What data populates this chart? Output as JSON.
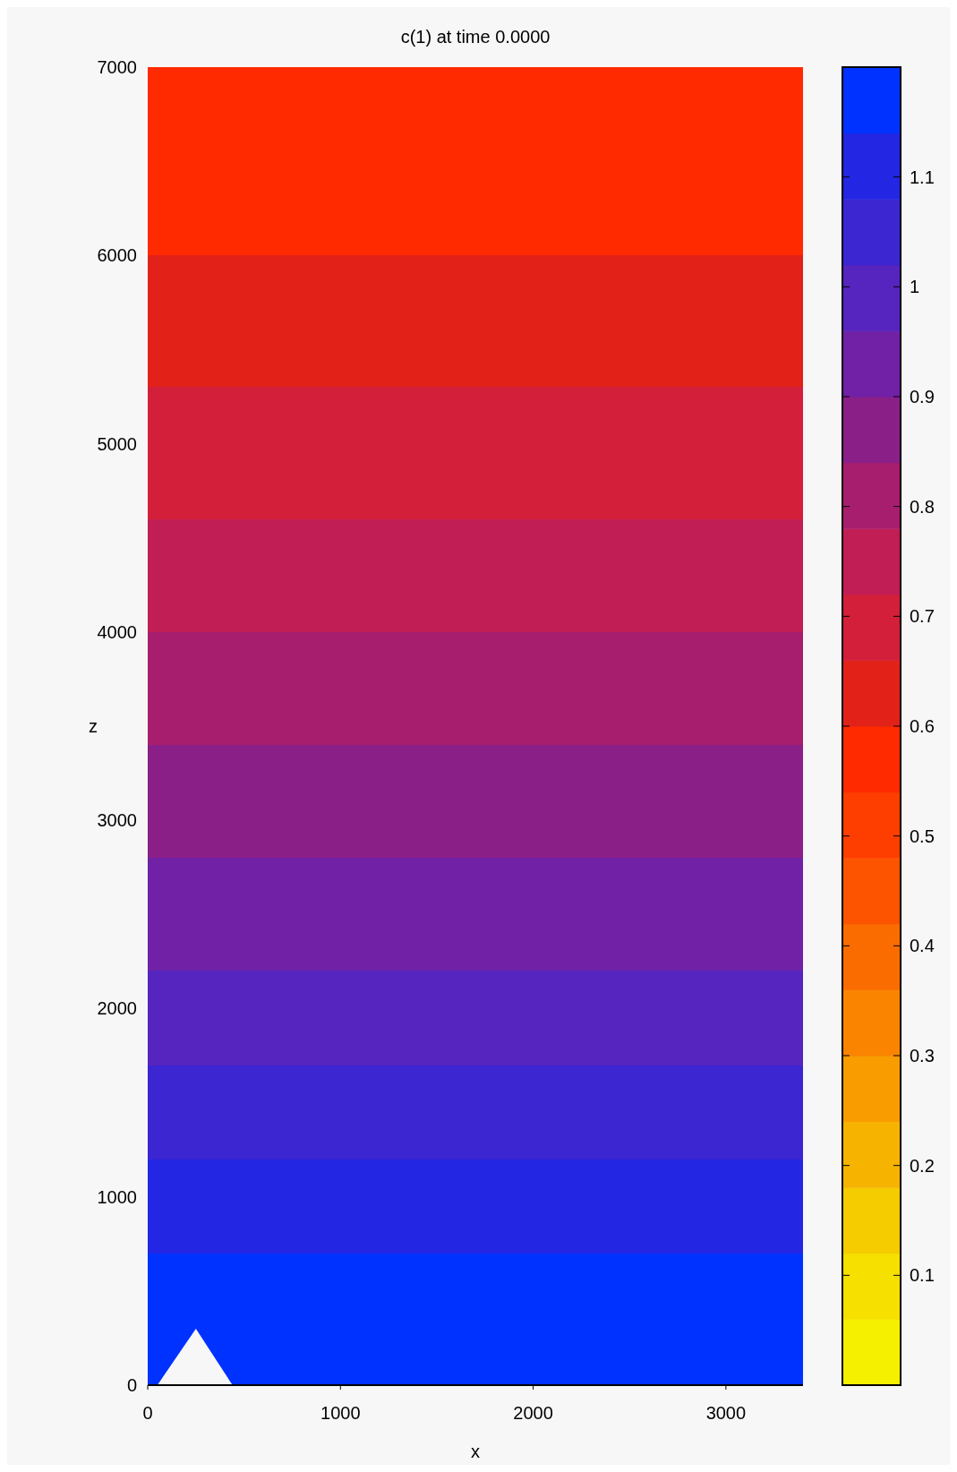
{
  "chart_data": {
    "type": "heatmap",
    "title": "c(1) at time  0.0000",
    "xlabel": "x",
    "ylabel": "z",
    "cells": [
      [
        0.57
      ],
      [
        0.57
      ],
      [
        0.57
      ],
      [
        0.57
      ],
      [
        0.57
      ],
      [
        0.57
      ],
      [
        0.57
      ],
      [
        0.57
      ],
      [
        0.57
      ],
      [
        0.57
      ],
      [
        0.63
      ],
      [
        0.63
      ],
      [
        0.63
      ],
      [
        0.63
      ],
      [
        0.63
      ],
      [
        0.63
      ],
      [
        0.63
      ],
      [
        0.69
      ],
      [
        0.69
      ],
      [
        0.69
      ],
      [
        0.69
      ],
      [
        0.69
      ],
      [
        0.69
      ],
      [
        0.69
      ],
      [
        0.75
      ],
      [
        0.75
      ],
      [
        0.75
      ],
      [
        0.75
      ],
      [
        0.75
      ],
      [
        0.75
      ],
      [
        0.81
      ],
      [
        0.81
      ],
      [
        0.81
      ],
      [
        0.81
      ],
      [
        0.81
      ],
      [
        0.81
      ],
      [
        0.87
      ],
      [
        0.87
      ],
      [
        0.87
      ],
      [
        0.87
      ],
      [
        0.87
      ],
      [
        0.87
      ],
      [
        0.93
      ],
      [
        0.93
      ],
      [
        0.93
      ],
      [
        0.93
      ],
      [
        0.93
      ],
      [
        0.93
      ],
      [
        0.99
      ],
      [
        0.99
      ],
      [
        0.99
      ],
      [
        0.99
      ],
      [
        0.99
      ],
      [
        1.05
      ],
      [
        1.05
      ],
      [
        1.05
      ],
      [
        1.05
      ],
      [
        1.05
      ],
      [
        1.11
      ],
      [
        1.11
      ],
      [
        1.11
      ],
      [
        1.11
      ],
      [
        1.11
      ],
      [
        1.17
      ],
      [
        1.17
      ],
      [
        1.17
      ],
      [
        1.17
      ],
      [
        1.17
      ],
      [
        1.17
      ],
      [
        1.17
      ]
    ],
    "xlim": [
      0,
      3400
    ],
    "xticks": [
      0,
      1000,
      2000,
      3000
    ],
    "ylim": [
      0,
      7000
    ],
    "yticks": [
      0,
      1000,
      2000,
      3000,
      4000,
      5000,
      6000,
      7000
    ],
    "clim": [
      0,
      1.2
    ],
    "cticks": [
      0.1,
      0.2,
      0.3,
      0.4,
      0.5,
      0.6,
      0.7,
      0.8,
      0.9,
      1,
      1.1
    ],
    "colors": [
      "#f5f000",
      "#f5e000",
      "#f5cc00",
      "#f6b400",
      "#f89c00",
      "#fa8400",
      "#fb6c00",
      "#fd5400",
      "#fe3e00",
      "#ff2a00",
      "#e22219",
      "#d41f3a",
      "#c11e55",
      "#a81e6e",
      "#8a1f88",
      "#7021a6",
      "#5624bf",
      "#3b26d2",
      "#2326e3",
      "#0032ff"
    ]
  }
}
